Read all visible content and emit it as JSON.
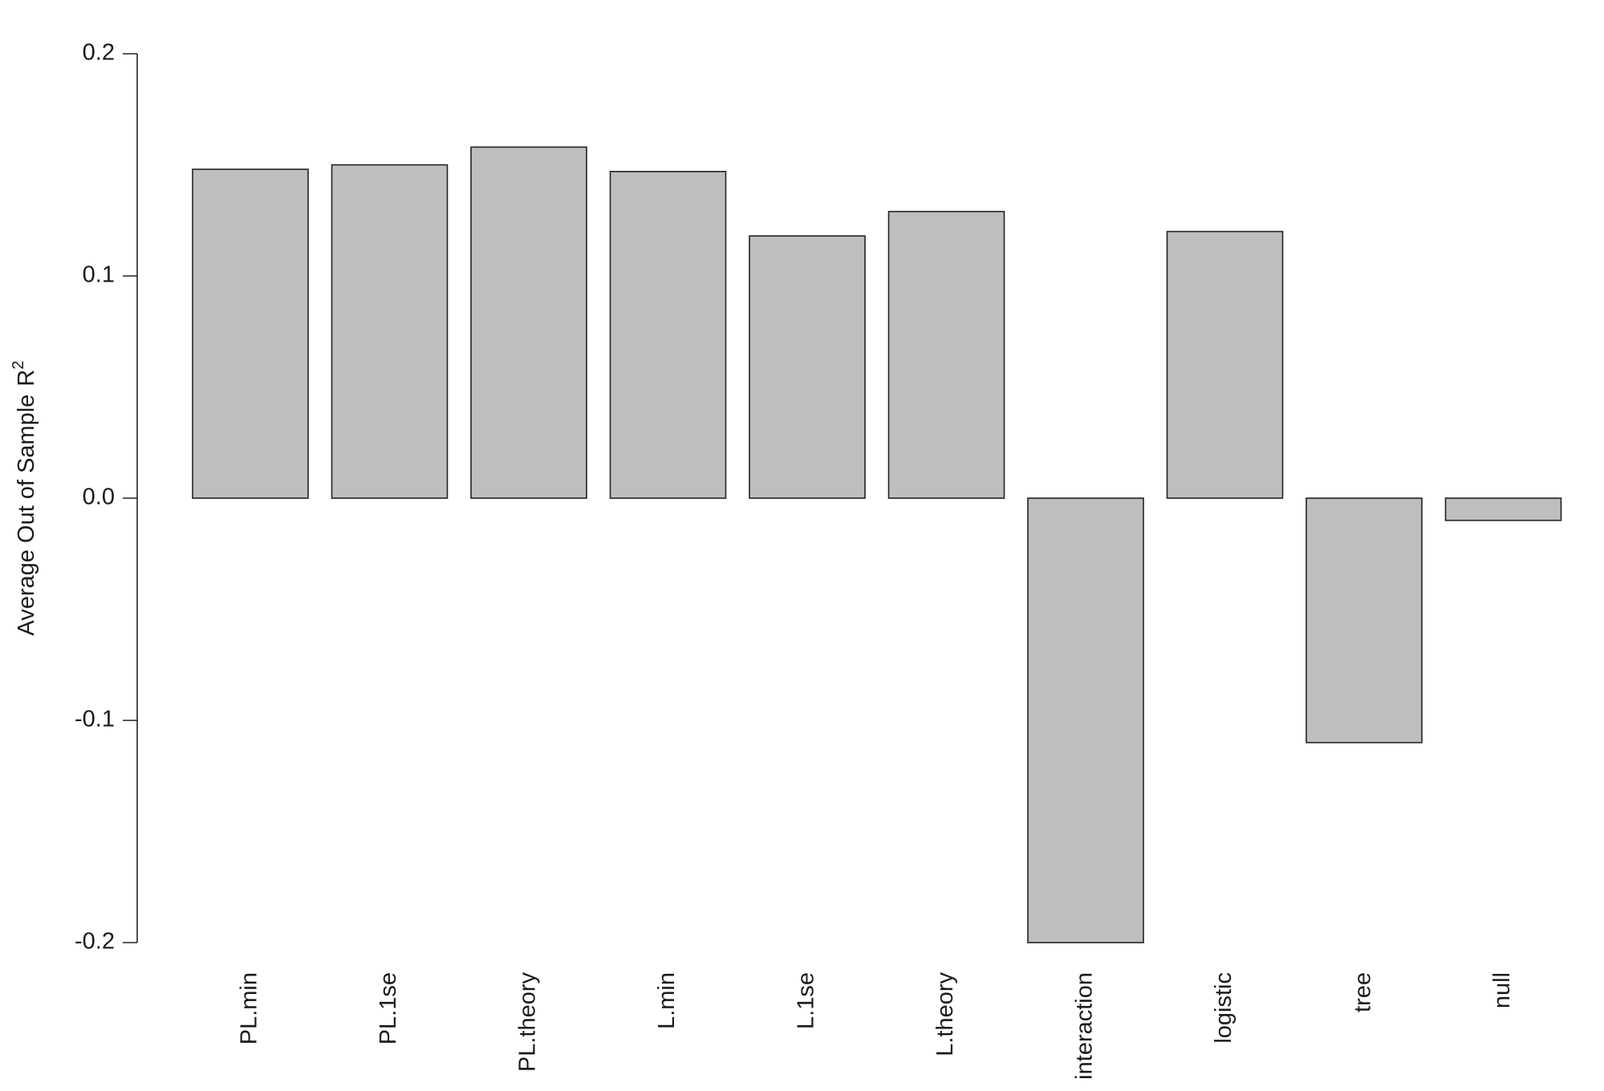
{
  "chart_data": {
    "type": "bar",
    "categories": [
      "PL.min",
      "PL.1se",
      "PL.theory",
      "L.min",
      "L.1se",
      "L.theory",
      "interaction",
      "logistic",
      "tree",
      "null"
    ],
    "values": [
      0.148,
      0.15,
      0.158,
      0.147,
      0.118,
      0.129,
      -0.2,
      0.12,
      -0.11,
      -0.01
    ],
    "title": "",
    "xlabel": "",
    "ylabel": "Average Out of Sample",
    "ylabel_suffix": "R",
    "ylabel_superscript": "2",
    "ylim": [
      -0.2,
      0.2
    ],
    "yticks": [
      0.2,
      0.1,
      0.0,
      -0.1,
      -0.2
    ],
    "ytick_labels": [
      "0.2",
      "0.1",
      "0.0",
      "-0.1",
      "-0.2"
    ],
    "bar_color": "#bebebe",
    "border_color": "#222222",
    "grid": false,
    "legend": "none"
  }
}
